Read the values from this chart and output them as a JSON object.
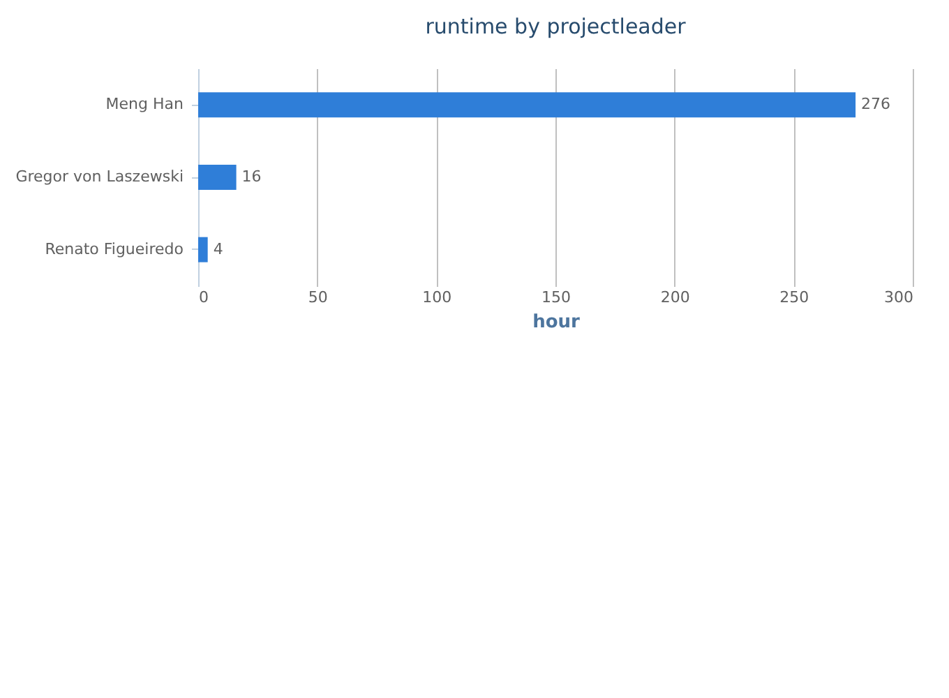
{
  "chart_data": {
    "type": "bar",
    "orientation": "horizontal",
    "title": "runtime by projectleader",
    "xlabel": "hour",
    "categories": [
      "Meng Han",
      "Gregor von Laszewski",
      "Renato Figueiredo"
    ],
    "values": [
      276,
      16,
      4
    ],
    "color": "#2f7ed8",
    "xlim": [
      0,
      300
    ],
    "xticks": [
      0,
      50,
      100,
      150,
      200,
      250,
      300
    ],
    "grid": "x",
    "data_labels": true
  }
}
